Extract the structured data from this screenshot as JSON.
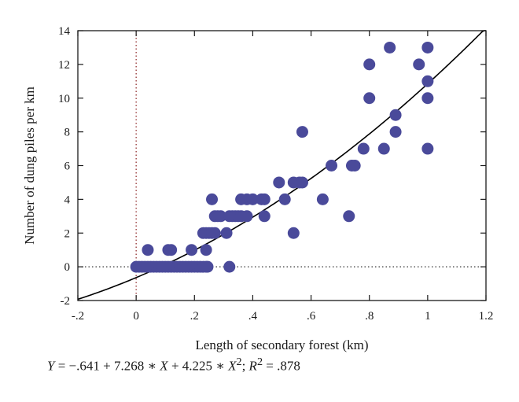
{
  "chart_data": {
    "type": "scatter",
    "title": "",
    "xlabel": "Length of secondary forest (km)",
    "ylabel": "Number of dung piles per km",
    "xlim": [
      -0.2,
      1.2
    ],
    "ylim": [
      -2,
      14
    ],
    "x_ticks": [
      -0.2,
      0,
      0.2,
      0.4,
      0.6,
      0.8,
      1.0,
      1.2
    ],
    "x_tick_labels": [
      "-.2",
      "0",
      ".2",
      ".4",
      ".6",
      ".8",
      "1",
      "1.2"
    ],
    "y_ticks": [
      -2,
      0,
      2,
      4,
      6,
      8,
      10,
      12,
      14
    ],
    "y_tick_labels": [
      "-2",
      "0",
      "2",
      "4",
      "6",
      "8",
      "10",
      "12",
      "14"
    ],
    "reference_lines": {
      "x_zero": "dotted",
      "y_zero": "dotted"
    },
    "grid": false,
    "point_color": "#4a4a9a",
    "line_color": "#000000",
    "fit": {
      "type": "quadratic",
      "intercept": -0.641,
      "b1": 7.268,
      "b2": 4.225,
      "r_squared": 0.878
    },
    "points": [
      [
        0.0,
        0
      ],
      [
        0.01,
        0
      ],
      [
        0.02,
        0
      ],
      [
        0.03,
        0
      ],
      [
        0.04,
        0
      ],
      [
        0.05,
        0
      ],
      [
        0.06,
        0
      ],
      [
        0.07,
        0
      ],
      [
        0.08,
        0
      ],
      [
        0.09,
        0
      ],
      [
        0.1,
        0
      ],
      [
        0.11,
        0
      ],
      [
        0.12,
        0
      ],
      [
        0.13,
        0
      ],
      [
        0.14,
        0
      ],
      [
        0.15,
        0
      ],
      [
        0.16,
        0
      ],
      [
        0.17,
        0
      ],
      [
        0.18,
        0
      ],
      [
        0.19,
        0
      ],
      [
        0.2,
        0
      ],
      [
        0.21,
        0
      ],
      [
        0.22,
        0
      ],
      [
        0.23,
        0
      ],
      [
        0.24,
        0
      ],
      [
        0.245,
        0
      ],
      [
        0.32,
        0
      ],
      [
        0.04,
        1
      ],
      [
        0.11,
        1
      ],
      [
        0.12,
        1
      ],
      [
        0.19,
        1
      ],
      [
        0.24,
        1
      ],
      [
        0.23,
        2
      ],
      [
        0.24,
        2
      ],
      [
        0.25,
        2
      ],
      [
        0.26,
        2
      ],
      [
        0.27,
        2
      ],
      [
        0.31,
        2
      ],
      [
        0.54,
        2
      ],
      [
        0.27,
        3
      ],
      [
        0.28,
        3
      ],
      [
        0.29,
        3
      ],
      [
        0.32,
        3
      ],
      [
        0.33,
        3
      ],
      [
        0.34,
        3
      ],
      [
        0.35,
        3
      ],
      [
        0.36,
        3
      ],
      [
        0.38,
        3
      ],
      [
        0.44,
        3
      ],
      [
        0.73,
        3
      ],
      [
        0.26,
        4
      ],
      [
        0.36,
        4
      ],
      [
        0.38,
        4
      ],
      [
        0.4,
        4
      ],
      [
        0.43,
        4
      ],
      [
        0.44,
        4
      ],
      [
        0.51,
        4
      ],
      [
        0.64,
        4
      ],
      [
        0.49,
        5
      ],
      [
        0.54,
        5
      ],
      [
        0.56,
        5
      ],
      [
        0.57,
        5
      ],
      [
        0.67,
        6
      ],
      [
        0.74,
        6
      ],
      [
        0.75,
        6
      ],
      [
        0.78,
        7
      ],
      [
        0.85,
        7
      ],
      [
        1.0,
        7
      ],
      [
        0.57,
        8
      ],
      [
        0.89,
        8
      ],
      [
        0.89,
        9
      ],
      [
        0.8,
        10
      ],
      [
        1.0,
        10
      ],
      [
        1.0,
        11
      ],
      [
        0.8,
        12
      ],
      [
        0.97,
        12
      ],
      [
        0.87,
        13
      ],
      [
        1.0,
        13
      ]
    ]
  },
  "equation": {
    "y_var": "Y",
    "rhs": " = −.641 + 7.268 ∗ ",
    "x_var": "X",
    "mid": " + 4.225 ∗ ",
    "x2_var": "X",
    "exp": "2",
    "sep": "; ",
    "r_var": "R",
    "r_exp": "2",
    "r_val": " = .878"
  }
}
